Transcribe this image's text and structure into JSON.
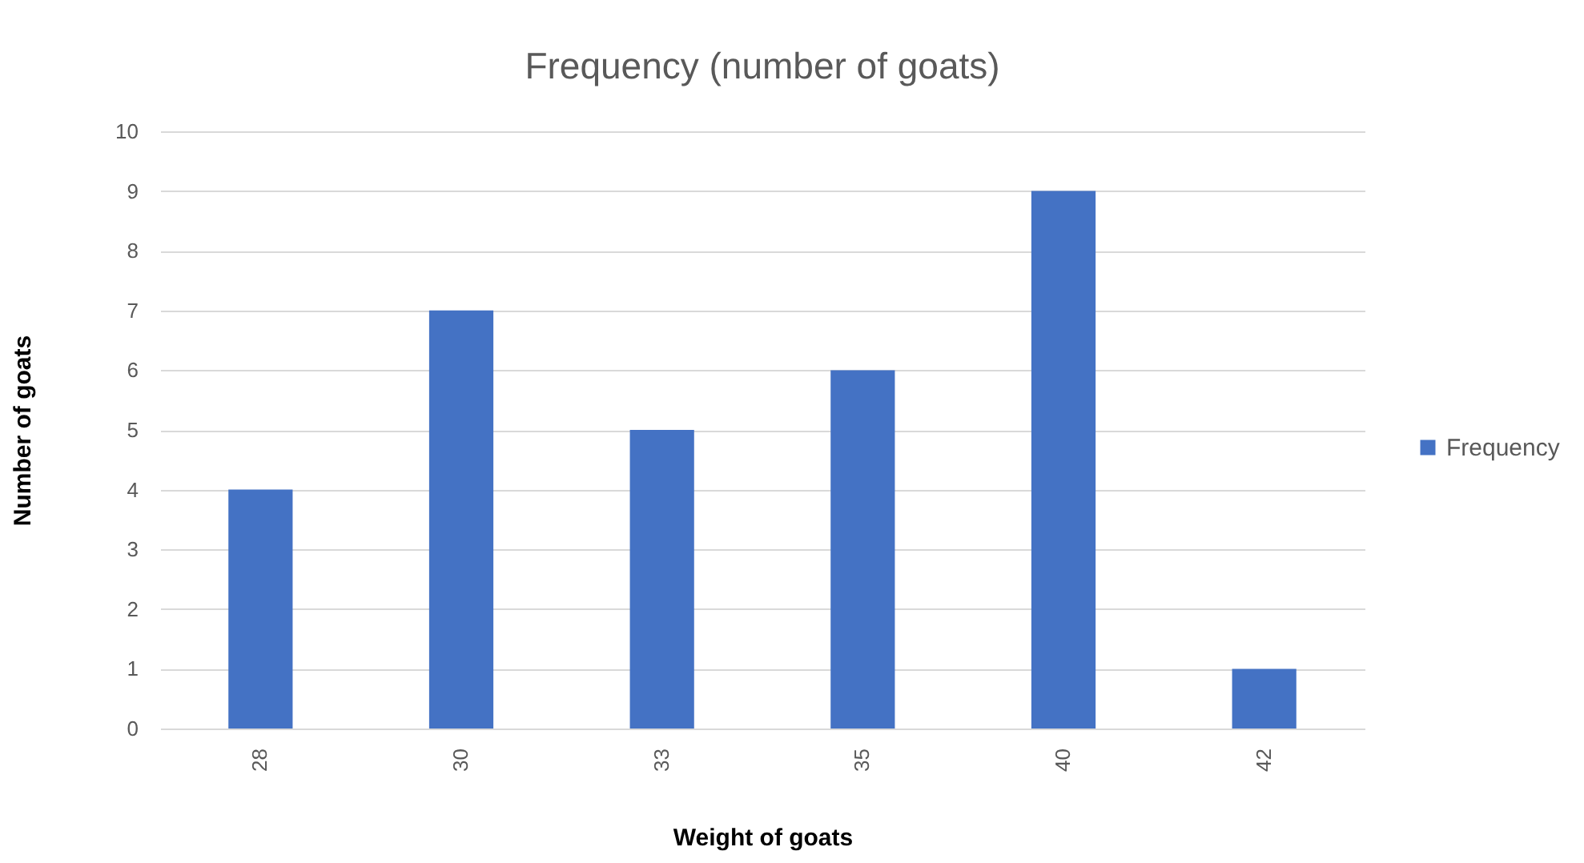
{
  "chart_data": {
    "type": "bar",
    "title": "Frequency (number of goats)",
    "xlabel": "Weight of goats",
    "ylabel": "Number of goats",
    "categories": [
      "28",
      "30",
      "33",
      "35",
      "40",
      "42"
    ],
    "series": [
      {
        "name": "Frequency",
        "color": "#4472c4",
        "values": [
          4,
          7,
          5,
          6,
          9,
          1
        ]
      }
    ],
    "ylim": [
      0,
      10
    ],
    "yticks": [
      0,
      1,
      2,
      3,
      4,
      5,
      6,
      7,
      8,
      9,
      10
    ],
    "grid": "y",
    "legend": "right"
  }
}
